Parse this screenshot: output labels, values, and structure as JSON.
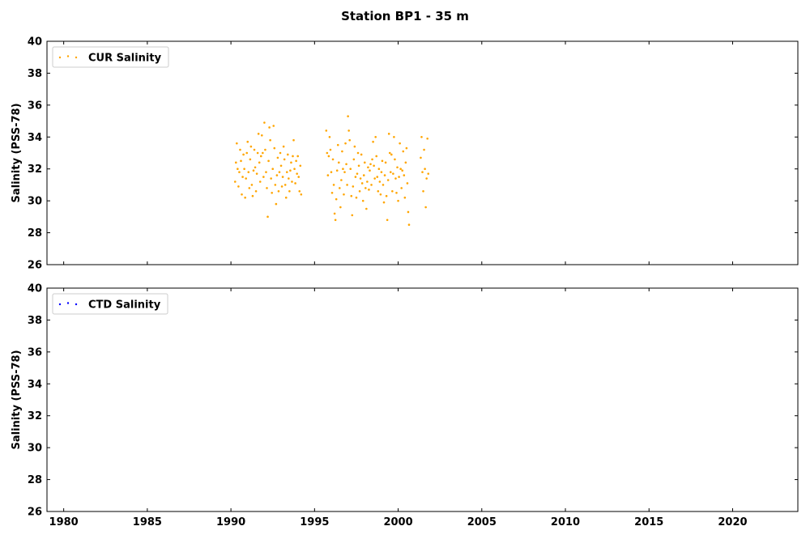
{
  "figure": {
    "title": "Station BP1 - 35 m"
  },
  "chart_data": [
    {
      "type": "scatter",
      "panel": "top",
      "title": "",
      "ylabel": "Salinity (PSS-78)",
      "xlabel": "",
      "xlim": [
        1979.0,
        2023.9
      ],
      "ylim": [
        26,
        40
      ],
      "xticks": [
        1980,
        1985,
        1990,
        1995,
        2000,
        2005,
        2010,
        2015,
        2020
      ],
      "yticks": [
        26,
        28,
        30,
        32,
        34,
        36,
        38,
        40
      ],
      "show_xtick_labels": false,
      "grid": false,
      "legend": {
        "position": "top-left"
      },
      "series": [
        {
          "name": "CUR Salinity",
          "color": "#ffa500",
          "marker": "dot",
          "points": [
            [
              1990.25,
              31.2
            ],
            [
              1990.3,
              32.4
            ],
            [
              1990.35,
              33.6
            ],
            [
              1990.4,
              32.0
            ],
            [
              1990.45,
              30.9
            ],
            [
              1990.5,
              31.8
            ],
            [
              1990.55,
              33.2
            ],
            [
              1990.6,
              32.5
            ],
            [
              1990.65,
              30.4
            ],
            [
              1990.7,
              31.5
            ],
            [
              1990.75,
              32.9
            ],
            [
              1990.8,
              32.0
            ],
            [
              1990.85,
              30.2
            ],
            [
              1990.9,
              31.4
            ],
            [
              1990.95,
              33.0
            ],
            [
              1991.0,
              33.7
            ],
            [
              1991.05,
              31.8
            ],
            [
              1991.1,
              30.8
            ],
            [
              1991.15,
              32.6
            ],
            [
              1991.2,
              33.4
            ],
            [
              1991.25,
              31.0
            ],
            [
              1991.3,
              30.3
            ],
            [
              1991.35,
              31.9
            ],
            [
              1991.4,
              33.2
            ],
            [
              1991.45,
              32.1
            ],
            [
              1991.5,
              30.6
            ],
            [
              1991.55,
              31.7
            ],
            [
              1991.6,
              33.0
            ],
            [
              1991.65,
              34.2
            ],
            [
              1991.7,
              32.4
            ],
            [
              1991.75,
              31.2
            ],
            [
              1991.8,
              32.8
            ],
            [
              1991.85,
              34.1
            ],
            [
              1991.9,
              33.0
            ],
            [
              1991.95,
              31.5
            ],
            [
              1992.0,
              34.9
            ],
            [
              1992.05,
              33.2
            ],
            [
              1992.1,
              31.8
            ],
            [
              1992.15,
              30.8
            ],
            [
              1992.2,
              29.0
            ],
            [
              1992.25,
              32.5
            ],
            [
              1992.3,
              34.6
            ],
            [
              1992.35,
              33.8
            ],
            [
              1992.4,
              31.4
            ],
            [
              1992.45,
              30.5
            ],
            [
              1992.5,
              32.0
            ],
            [
              1992.55,
              34.7
            ],
            [
              1992.6,
              33.3
            ],
            [
              1992.65,
              31.0
            ],
            [
              1992.7,
              29.8
            ],
            [
              1992.75,
              31.6
            ],
            [
              1992.8,
              32.7
            ],
            [
              1992.85,
              30.6
            ],
            [
              1992.9,
              31.8
            ],
            [
              1992.95,
              33.0
            ],
            [
              1993.0,
              32.2
            ],
            [
              1993.05,
              30.9
            ],
            [
              1993.1,
              31.5
            ],
            [
              1993.15,
              33.4
            ],
            [
              1993.2,
              32.6
            ],
            [
              1993.25,
              31.0
            ],
            [
              1993.3,
              30.2
            ],
            [
              1993.35,
              31.8
            ],
            [
              1993.4,
              32.9
            ],
            [
              1993.45,
              31.4
            ],
            [
              1993.5,
              30.6
            ],
            [
              1993.55,
              31.9
            ],
            [
              1993.6,
              32.4
            ],
            [
              1993.65,
              31.2
            ],
            [
              1993.7,
              32.8
            ],
            [
              1993.75,
              33.8
            ],
            [
              1993.8,
              32.0
            ],
            [
              1993.85,
              31.1
            ],
            [
              1993.9,
              32.5
            ],
            [
              1993.95,
              31.7
            ],
            [
              1994.0,
              32.8
            ],
            [
              1994.05,
              31.5
            ],
            [
              1994.1,
              30.6
            ],
            [
              1994.15,
              32.2
            ],
            [
              1994.2,
              30.4
            ],
            [
              1995.7,
              34.4
            ],
            [
              1995.75,
              33.0
            ],
            [
              1995.8,
              31.6
            ],
            [
              1995.85,
              32.8
            ],
            [
              1995.9,
              34.0
            ],
            [
              1995.95,
              33.2
            ],
            [
              1996.0,
              31.8
            ],
            [
              1996.05,
              30.5
            ],
            [
              1996.1,
              32.6
            ],
            [
              1996.15,
              31.0
            ],
            [
              1996.2,
              29.2
            ],
            [
              1996.25,
              28.8
            ],
            [
              1996.3,
              30.1
            ],
            [
              1996.35,
              31.9
            ],
            [
              1996.4,
              33.5
            ],
            [
              1996.45,
              32.4
            ],
            [
              1996.5,
              30.8
            ],
            [
              1996.55,
              29.6
            ],
            [
              1996.6,
              31.3
            ],
            [
              1996.65,
              33.1
            ],
            [
              1996.7,
              32.0
            ],
            [
              1996.75,
              30.4
            ],
            [
              1996.8,
              31.8
            ],
            [
              1996.85,
              33.6
            ],
            [
              1996.9,
              32.3
            ],
            [
              1996.95,
              31.0
            ],
            [
              1997.0,
              35.3
            ],
            [
              1997.05,
              34.4
            ],
            [
              1997.1,
              33.8
            ],
            [
              1997.15,
              32.0
            ],
            [
              1997.2,
              30.3
            ],
            [
              1997.25,
              29.1
            ],
            [
              1997.3,
              30.9
            ],
            [
              1997.35,
              32.6
            ],
            [
              1997.4,
              33.4
            ],
            [
              1997.45,
              31.5
            ],
            [
              1997.5,
              30.2
            ],
            [
              1997.55,
              31.7
            ],
            [
              1997.6,
              33.0
            ],
            [
              1997.65,
              32.2
            ],
            [
              1997.7,
              30.6
            ],
            [
              1997.75,
              31.4
            ],
            [
              1997.8,
              32.9
            ],
            [
              1997.85,
              31.1
            ],
            [
              1997.9,
              30.0
            ],
            [
              1997.95,
              31.6
            ],
            [
              1998.0,
              32.4
            ],
            [
              1998.05,
              30.8
            ],
            [
              1998.1,
              29.5
            ],
            [
              1998.15,
              31.2
            ],
            [
              1998.2,
              32.1
            ],
            [
              1998.25,
              30.7
            ],
            [
              1998.3,
              31.9
            ],
            [
              1998.35,
              32.3
            ],
            [
              1998.4,
              31.0
            ],
            [
              1998.45,
              32.6
            ],
            [
              1998.5,
              33.7
            ],
            [
              1998.55,
              32.2
            ],
            [
              1998.6,
              31.4
            ],
            [
              1998.65,
              34.0
            ],
            [
              1998.7,
              32.8
            ],
            [
              1998.75,
              31.5
            ],
            [
              1998.8,
              30.6
            ],
            [
              1998.85,
              32.0
            ],
            [
              1998.9,
              31.2
            ],
            [
              1998.95,
              30.4
            ],
            [
              1999.0,
              31.8
            ],
            [
              1999.05,
              32.5
            ],
            [
              1999.1,
              31.0
            ],
            [
              1999.15,
              29.9
            ],
            [
              1999.2,
              31.6
            ],
            [
              1999.25,
              32.4
            ],
            [
              1999.3,
              30.3
            ],
            [
              1999.35,
              28.8
            ],
            [
              1999.4,
              31.3
            ],
            [
              1999.45,
              34.2
            ],
            [
              1999.5,
              33.0
            ],
            [
              1999.55,
              31.8
            ],
            [
              1999.6,
              32.9
            ],
            [
              1999.65,
              30.6
            ],
            [
              1999.7,
              31.7
            ],
            [
              1999.75,
              34.0
            ],
            [
              1999.8,
              32.6
            ],
            [
              1999.85,
              31.4
            ],
            [
              1999.9,
              30.5
            ],
            [
              1999.95,
              32.1
            ],
            [
              2000.0,
              30.0
            ],
            [
              2000.05,
              31.5
            ],
            [
              2000.1,
              33.6
            ],
            [
              2000.15,
              32.0
            ],
            [
              2000.2,
              30.8
            ],
            [
              2000.25,
              31.9
            ],
            [
              2000.3,
              33.1
            ],
            [
              2000.35,
              31.6
            ],
            [
              2000.4,
              30.2
            ],
            [
              2000.45,
              32.4
            ],
            [
              2000.5,
              33.3
            ],
            [
              2000.55,
              31.1
            ],
            [
              2000.6,
              29.3
            ],
            [
              2000.65,
              28.5
            ],
            [
              2001.35,
              32.7
            ],
            [
              2001.4,
              34.0
            ],
            [
              2001.45,
              31.8
            ],
            [
              2001.5,
              30.6
            ],
            [
              2001.55,
              33.2
            ],
            [
              2001.6,
              32.0
            ],
            [
              2001.65,
              29.6
            ],
            [
              2001.7,
              31.4
            ],
            [
              2001.75,
              33.9
            ],
            [
              2001.8,
              31.7
            ]
          ]
        }
      ]
    },
    {
      "type": "scatter",
      "panel": "bottom",
      "title": "",
      "ylabel": "Salinity (PSS-78)",
      "xlabel": "",
      "xlim": [
        1979.0,
        2023.9
      ],
      "ylim": [
        26,
        40
      ],
      "xticks": [
        1980,
        1985,
        1990,
        1995,
        2000,
        2005,
        2010,
        2015,
        2020
      ],
      "yticks": [
        26,
        28,
        30,
        32,
        34,
        36,
        38,
        40
      ],
      "show_xtick_labels": true,
      "grid": false,
      "legend": {
        "position": "top-left"
      },
      "series": [
        {
          "name": "CTD Salinity",
          "color": "#0000ff",
          "marker": "dot",
          "points": []
        }
      ]
    }
  ]
}
